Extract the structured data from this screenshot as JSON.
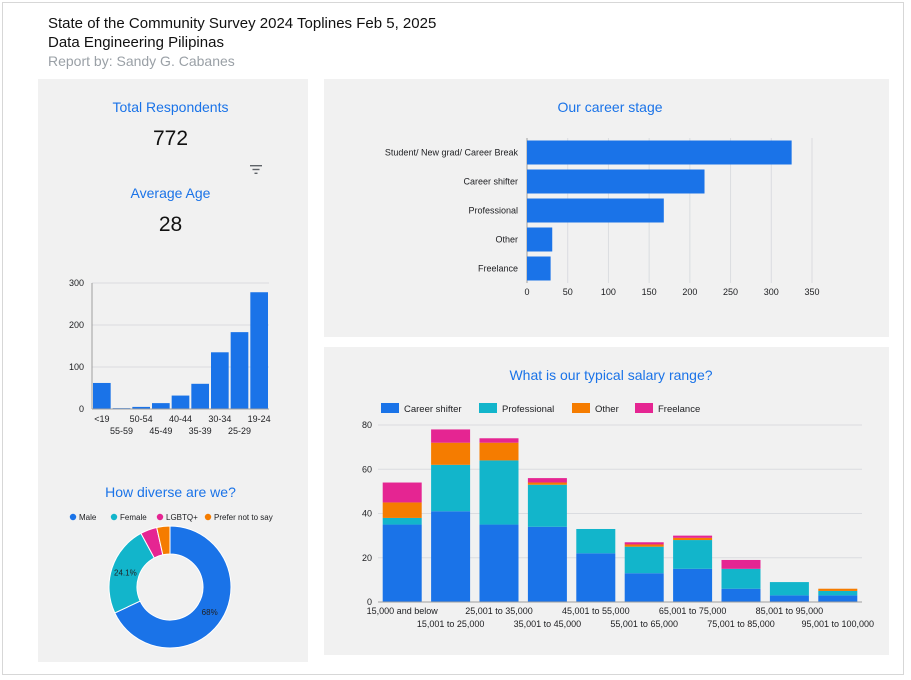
{
  "header": {
    "title": "State of the Community Survey 2024 Toplines Feb 5, 2025",
    "org": "Data Engineering Pilipinas",
    "author": "Report by: Sandy G. Cabanes"
  },
  "kpis": {
    "total_label": "Total Respondents",
    "total_value": "772",
    "age_label": "Average Age",
    "age_value": "28"
  },
  "colors": {
    "blue": "#1a73e8",
    "teal": "#12b5cb",
    "orange": "#f57c00",
    "magenta": "#e52592",
    "title_blue": "#1a73e8"
  },
  "icons": {
    "filter": "filter-icon"
  },
  "chart_data": [
    {
      "id": "age",
      "type": "bar",
      "categories": [
        "<19",
        "55-59",
        "50-54",
        "45-49",
        "40-44",
        "35-39",
        "30-34",
        "25-29",
        "19-24"
      ],
      "values": [
        62,
        2,
        5,
        14,
        32,
        60,
        135,
        183,
        278
      ],
      "ylim": [
        0,
        300
      ],
      "yticks": [
        0,
        100,
        200,
        300
      ],
      "grid": true
    },
    {
      "id": "diversity",
      "type": "pie",
      "title": "How diverse are we?",
      "labels": [
        "Male",
        "Female",
        "LGBTQ+",
        "Prefer not to say"
      ],
      "values": [
        68,
        24.1,
        4.4,
        3.5
      ],
      "slice_labels": [
        "68%",
        "24.1%",
        "",
        ""
      ],
      "donut": true,
      "legend": "top"
    },
    {
      "id": "career",
      "type": "bar",
      "orientation": "horizontal",
      "title": "Our career stage",
      "categories": [
        "Student/ New grad/ Career Break",
        "Career shifter",
        "Professional",
        "Other",
        "Freelance"
      ],
      "values": [
        325,
        218,
        168,
        31,
        29
      ],
      "xlim": [
        0,
        350
      ],
      "xticks": [
        0,
        50,
        100,
        150,
        200,
        250,
        300,
        350
      ],
      "grid": true
    },
    {
      "id": "salary",
      "type": "bar",
      "stacked": true,
      "title": "What is our typical salary range?",
      "categories": [
        "15,000 and below",
        "15,001 to 25,000",
        "25,001 to 35,000",
        "35,001 to 45,000",
        "45,001 to 55,000",
        "55,001 to 65,000",
        "65,001 to 75,000",
        "75,001 to 85,000",
        "85,001 to 95,000",
        "95,001 to 100,000"
      ],
      "series": [
        {
          "name": "Career shifter",
          "values": [
            35,
            41,
            35,
            34,
            22,
            13,
            15,
            6,
            3,
            3
          ]
        },
        {
          "name": "Professional",
          "values": [
            3,
            21,
            29,
            19,
            11,
            12,
            13,
            9,
            6,
            2
          ]
        },
        {
          "name": "Other",
          "values": [
            7,
            10,
            8,
            1,
            0,
            1,
            1,
            0,
            0,
            1
          ]
        },
        {
          "name": "Freelance",
          "values": [
            9,
            6,
            2,
            2,
            0,
            1,
            1,
            4,
            0,
            0
          ]
        }
      ],
      "ylim": [
        0,
        80
      ],
      "yticks": [
        0,
        20,
        40,
        60,
        80
      ],
      "legend": "top-left",
      "grid": true
    }
  ]
}
